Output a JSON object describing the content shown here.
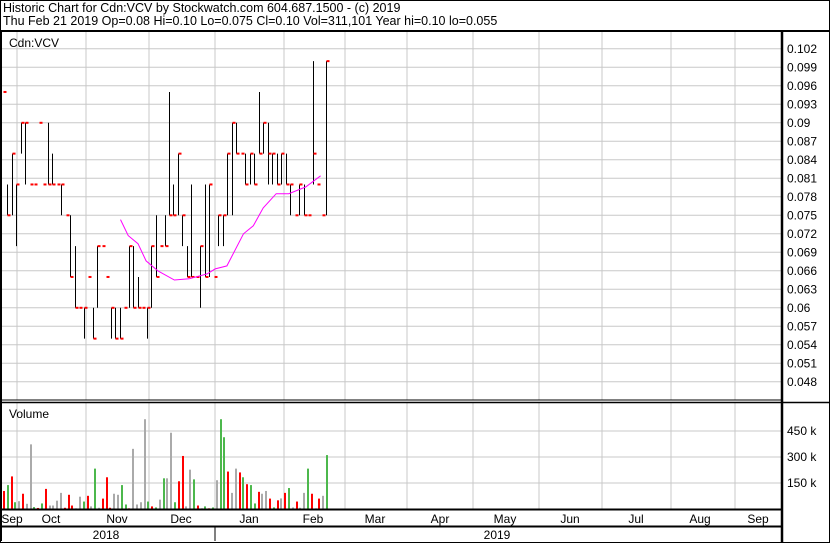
{
  "header": {
    "title": "Historic Chart for Cdn:VCV by Stockwatch.com 604.687.1500 - (c) 2019",
    "quote": "Thu Feb 21 2019  Op=0.08  Hi=0.10  Lo=0.075  Cl=0.10  Vol=311,101  Year hi=0.10  lo=0.055"
  },
  "colors": {
    "up": "#4cb84c",
    "down": "#ff0000",
    "flat": "#aaaaaa",
    "tick": "#ff0000",
    "bar": "#000000",
    "ma": "#ff00ff",
    "grid": "#c8c8c8"
  },
  "chart_data": [
    {
      "type": "ohlc",
      "label": "Cdn:VCV",
      "y_ticks": [
        "0.102",
        "0.099",
        "0.096",
        "0.093",
        "0.09",
        "0.087",
        "0.084",
        "0.081",
        "0.078",
        "0.075",
        "0.072",
        "0.069",
        "0.066",
        "0.063",
        "0.06",
        "0.057",
        "0.054",
        "0.051",
        "0.048"
      ],
      "ylim": [
        0.0465,
        0.1045
      ],
      "grid": true,
      "bars_hi_lo_close": [
        [
          0.095,
          0.095,
          0.095
        ],
        [
          0.08,
          0.075,
          0.075
        ],
        [
          0.085,
          0.075,
          0.085
        ],
        [
          0.08,
          0.07,
          0.08
        ],
        [
          0.09,
          0.085,
          0.09
        ],
        [
          0.09,
          0.08,
          0.09
        ],
        [
          0.08,
          0.08,
          0.08
        ],
        [
          0.08,
          0.08,
          0.08
        ],
        [
          0.09,
          0.09,
          0.09
        ],
        [
          0.08,
          0.08,
          0.08
        ],
        [
          0.09,
          0.08,
          0.08
        ],
        [
          0.085,
          0.08,
          0.08
        ],
        [
          0.08,
          0.08,
          0.08
        ],
        [
          0.08,
          0.075,
          0.08
        ],
        [
          0.075,
          0.075,
          0.075
        ],
        [
          0.075,
          0.065,
          0.065
        ],
        [
          0.07,
          0.06,
          0.06
        ],
        [
          0.06,
          0.06,
          0.06
        ],
        [
          0.06,
          0.055,
          0.06
        ],
        [
          0.065,
          0.065,
          0.065
        ],
        [
          0.06,
          0.055,
          0.055
        ],
        [
          0.07,
          0.06,
          0.07
        ],
        [
          0.07,
          0.07,
          0.07
        ],
        [
          0.065,
          0.065,
          0.065
        ],
        [
          0.06,
          0.055,
          0.06
        ],
        [
          0.06,
          0.055,
          0.055
        ],
        [
          0.06,
          0.055,
          0.055
        ],
        [
          0.06,
          0.06,
          0.06
        ],
        [
          0.07,
          0.06,
          0.07
        ],
        [
          0.07,
          0.06,
          0.06
        ],
        [
          0.065,
          0.06,
          0.06
        ],
        [
          0.06,
          0.06,
          0.06
        ],
        [
          0.06,
          0.055,
          0.06
        ],
        [
          0.07,
          0.06,
          0.07
        ],
        [
          0.075,
          0.065,
          0.065
        ],
        [
          0.07,
          0.07,
          0.07
        ],
        [
          0.075,
          0.07,
          0.07
        ],
        [
          0.095,
          0.075,
          0.075
        ],
        [
          0.08,
          0.075,
          0.075
        ],
        [
          0.085,
          0.075,
          0.085
        ],
        [
          0.075,
          0.07,
          0.075
        ],
        [
          0.07,
          0.065,
          0.065
        ],
        [
          0.08,
          0.065,
          0.065
        ],
        [
          0.065,
          0.065,
          0.065
        ],
        [
          0.07,
          0.06,
          0.07
        ],
        [
          0.08,
          0.065,
          0.065
        ],
        [
          0.08,
          0.065,
          0.08
        ],
        [
          0.065,
          0.065,
          0.065
        ],
        [
          0.075,
          0.07,
          0.075
        ],
        [
          0.075,
          0.07,
          0.075
        ],
        [
          0.085,
          0.075,
          0.085
        ],
        [
          0.09,
          0.075,
          0.09
        ],
        [
          0.09,
          0.085,
          0.085
        ],
        [
          0.085,
          0.085,
          0.085
        ],
        [
          0.085,
          0.08,
          0.08
        ],
        [
          0.085,
          0.08,
          0.085
        ],
        [
          0.085,
          0.08,
          0.08
        ],
        [
          0.095,
          0.085,
          0.085
        ],
        [
          0.09,
          0.085,
          0.09
        ],
        [
          0.09,
          0.08,
          0.085
        ],
        [
          0.085,
          0.08,
          0.085
        ],
        [
          0.085,
          0.08,
          0.08
        ],
        [
          0.085,
          0.08,
          0.085
        ],
        [
          0.085,
          0.08,
          0.08
        ],
        [
          0.08,
          0.075,
          0.08
        ],
        [
          0.075,
          0.075,
          0.075
        ],
        [
          0.08,
          0.075,
          0.08
        ],
        [
          0.08,
          0.075,
          0.075
        ],
        [
          0.075,
          0.075,
          0.075
        ],
        [
          0.1,
          0.08,
          0.085
        ],
        [
          0.08,
          0.08,
          0.08
        ],
        [
          0.075,
          0.075,
          0.075
        ],
        [
          0.1,
          0.075,
          0.1
        ]
      ],
      "moving_average": [
        [
          26.2,
          0.0743
        ],
        [
          27.9,
          0.0717
        ],
        [
          30.1,
          0.0704
        ],
        [
          31.9,
          0.0676
        ],
        [
          34.5,
          0.066
        ],
        [
          38.2,
          0.0645
        ],
        [
          41.5,
          0.0647
        ],
        [
          45.5,
          0.0655
        ],
        [
          47.3,
          0.0663
        ],
        [
          49.9,
          0.0668
        ],
        [
          53.6,
          0.072
        ],
        [
          55.8,
          0.0733
        ],
        [
          58.0,
          0.0762
        ],
        [
          60.9,
          0.0785
        ],
        [
          63.7,
          0.0785
        ],
        [
          67.5,
          0.0796
        ],
        [
          70.8,
          0.0814
        ]
      ]
    },
    {
      "type": "bar",
      "label": "Volume",
      "y_ticks": [
        "450 k",
        "300 k",
        "150 k"
      ],
      "ylim": [
        0,
        600000
      ],
      "volumes_k": [
        104,
        138,
        188,
        39,
        45,
        88,
        30,
        373,
        11,
        6,
        32,
        116,
        20,
        20,
        48,
        93,
        7,
        82,
        20,
        4,
        71,
        43,
        76,
        15,
        233,
        7,
        60,
        183,
        7,
        88,
        82,
        138,
        26,
        4,
        347,
        26,
        39,
        518,
        43,
        15,
        9,
        54,
        177,
        177,
        440,
        39,
        160,
        306,
        15,
        227,
        171,
        20,
        4,
        15,
        4,
        9,
        166,
        518,
        414,
        216,
        93,
        233,
        211,
        183,
        143,
        138,
        32,
        99,
        88,
        104,
        60,
        9,
        50,
        61,
        93,
        121,
        9,
        43,
        7,
        93,
        233,
        88,
        4,
        60,
        76,
        311
      ],
      "volume_colors": [
        "d",
        "u",
        "d",
        "u",
        "f",
        "d",
        "f",
        "f",
        "u",
        "d",
        "u",
        "d",
        "f",
        "f",
        "f",
        "f",
        "d",
        "d",
        "d",
        "f",
        "f",
        "u",
        "d",
        "f",
        "u",
        "f",
        "d",
        "d",
        "d",
        "f",
        "f",
        "u",
        "u",
        "d",
        "f",
        "f",
        "f",
        "f",
        "u",
        "d",
        "u",
        "f",
        "u",
        "f",
        "f",
        "u",
        "d",
        "d",
        "f",
        "f",
        "u",
        "d",
        "f",
        "u",
        "d",
        "u",
        "f",
        "u",
        "u",
        "d",
        "f",
        "f",
        "d",
        "u",
        "d",
        "u",
        "u",
        "d",
        "f",
        "f",
        "d",
        "u",
        "d",
        "f",
        "d",
        "u",
        "f",
        "d",
        "f",
        "f",
        "u",
        "d",
        "f",
        "d",
        "f",
        "u"
      ]
    }
  ],
  "x_axis": {
    "months": [
      "Sep",
      "Oct",
      "Nov",
      "Dec",
      "Jan",
      "Feb",
      "Mar",
      "Apr",
      "May",
      "Jun",
      "Jul",
      "Aug",
      "Sep"
    ],
    "years": [
      "2018",
      "2019"
    ]
  }
}
